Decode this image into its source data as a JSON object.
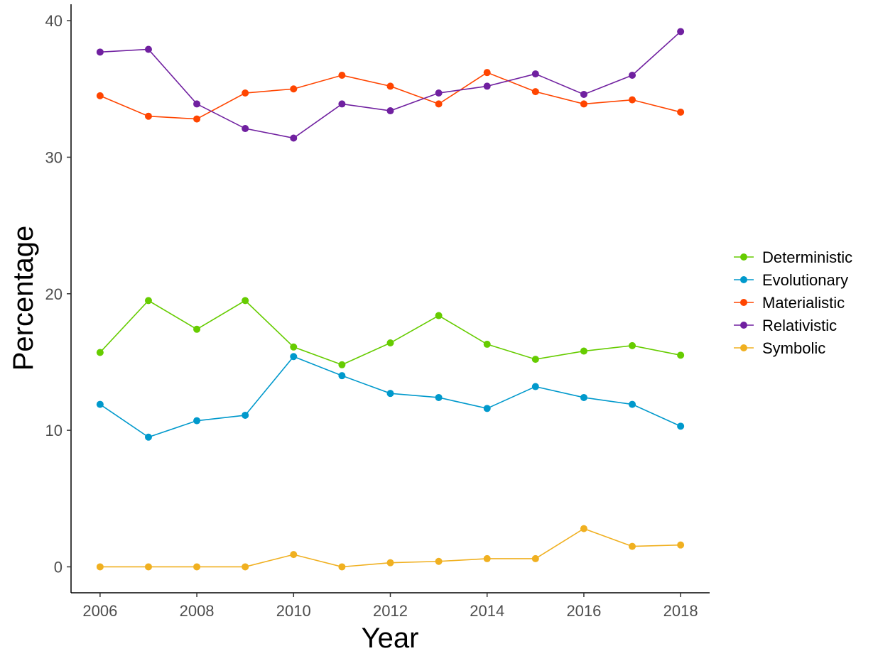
{
  "chart_data": {
    "type": "line",
    "xlabel": "Year",
    "ylabel": "Percentage",
    "x": [
      2006,
      2007,
      2008,
      2009,
      2010,
      2011,
      2012,
      2013,
      2014,
      2015,
      2016,
      2017,
      2018
    ],
    "xlim": [
      2005.4,
      2018.6
    ],
    "ylim": [
      -1.9,
      41.2
    ],
    "xticks": [
      2006,
      2008,
      2010,
      2012,
      2014,
      2016,
      2018
    ],
    "yticks": [
      0,
      10,
      20,
      30,
      40
    ],
    "xtick_labels": [
      "2006",
      "2008",
      "2010",
      "2012",
      "2014",
      "2016",
      "2018"
    ],
    "ytick_labels": [
      "0",
      "10",
      "20",
      "30",
      "40"
    ],
    "grid": false,
    "legend_position": "right",
    "series": [
      {
        "name": "Deterministic",
        "color": "#66cc00",
        "values": [
          15.7,
          19.5,
          17.4,
          19.5,
          16.1,
          14.8,
          16.4,
          18.4,
          16.3,
          15.2,
          15.8,
          16.2,
          15.5
        ]
      },
      {
        "name": "Evolutionary",
        "color": "#0099cc",
        "values": [
          11.9,
          9.5,
          10.7,
          11.1,
          15.4,
          14.0,
          12.7,
          12.4,
          11.6,
          13.2,
          12.4,
          11.9,
          10.3
        ]
      },
      {
        "name": "Materialistic",
        "color": "#ff4500",
        "values": [
          34.5,
          33.0,
          32.8,
          34.7,
          35.0,
          36.0,
          35.2,
          33.9,
          36.2,
          34.8,
          33.9,
          34.2,
          33.3
        ]
      },
      {
        "name": "Relativistic",
        "color": "#7020a0",
        "values": [
          37.7,
          37.9,
          33.9,
          32.1,
          31.4,
          33.9,
          33.4,
          34.7,
          35.2,
          36.1,
          34.6,
          36.0,
          39.2
        ]
      },
      {
        "name": "Symbolic",
        "color": "#f0b020",
        "values": [
          0.0,
          0.0,
          0.0,
          0.0,
          0.9,
          0.0,
          0.3,
          0.4,
          0.6,
          0.6,
          2.8,
          1.5,
          1.6
        ]
      }
    ]
  }
}
